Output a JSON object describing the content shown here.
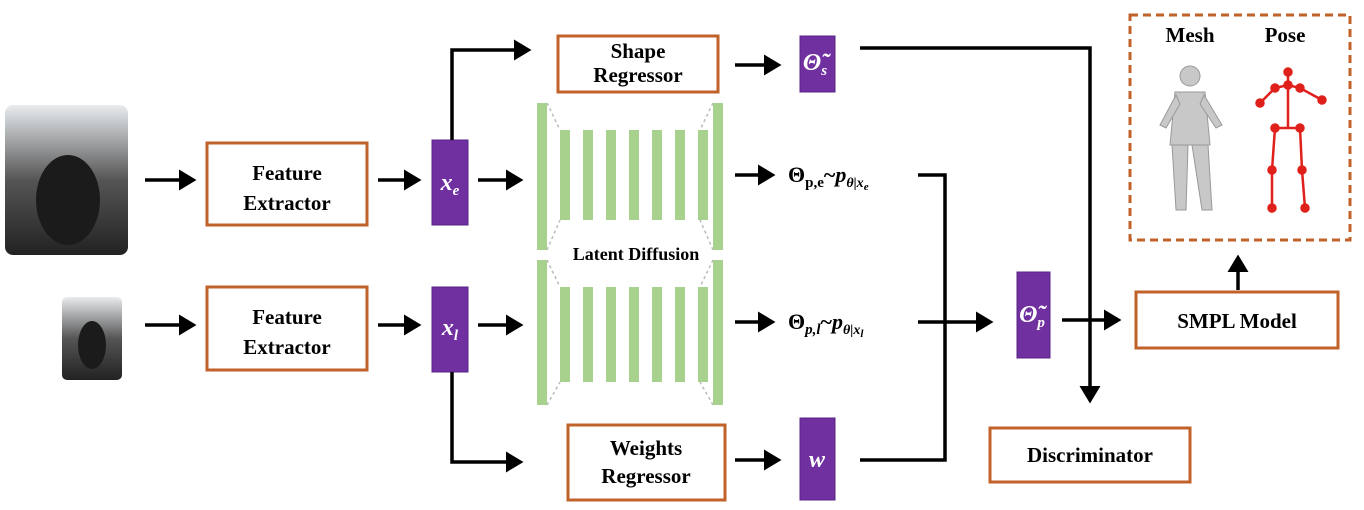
{
  "boxes": {
    "shape_regressor": [
      "Shape",
      "Regressor"
    ],
    "feature_extractor_1": [
      "Feature",
      "Extractor"
    ],
    "feature_extractor_2": [
      "Feature",
      "Extractor"
    ],
    "weights_regressor": [
      "Weights",
      "Regressor"
    ],
    "smpl_model": "SMPL Model",
    "discriminator": "Discriminator"
  },
  "latent_diffusion": "Latent Diffusion",
  "variables": {
    "x_e": {
      "base": "x",
      "sub": "e"
    },
    "x_l": {
      "base": "x",
      "sub": "l"
    },
    "w": "w",
    "theta_s": {
      "base": "Θ̃",
      "sub": "s"
    },
    "theta_p": {
      "base": "Θ̃",
      "sub": "p"
    }
  },
  "samples": [
    {
      "theta": "Θ",
      "theta_sub": "p,e",
      "sep": "~",
      "p": "p",
      "p_sub": "θ|x",
      "p_subsub": "e"
    },
    {
      "theta": "Θ",
      "theta_sub": "p,l",
      "sep": "~",
      "p": "p",
      "p_sub": "θ|x",
      "p_subsub": "l"
    }
  ],
  "output": {
    "mesh": "Mesh",
    "pose": "Pose"
  }
}
